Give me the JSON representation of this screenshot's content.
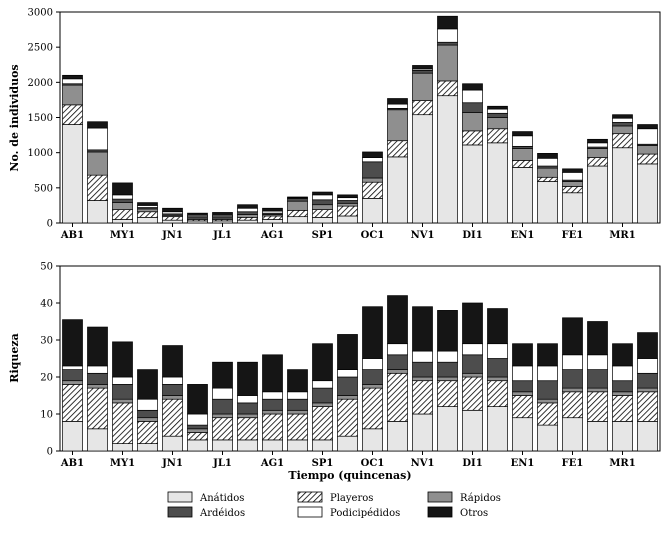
{
  "chart_data": [
    {
      "type": "bar",
      "stacked": true,
      "ylabel": "No. de individuos",
      "xlabel": "",
      "ylim": [
        0,
        3000
      ],
      "yticks": [
        0,
        500,
        1000,
        1500,
        2000,
        2500,
        3000
      ],
      "xtick_labels": [
        "AB1",
        "MY1",
        "JN1",
        "JL1",
        "AG1",
        "SP1",
        "OC1",
        "NV1",
        "DI1",
        "EN1",
        "FE1",
        "MR1"
      ],
      "n_bars": 24,
      "series": [
        {
          "name": "Anátidos",
          "values": [
            1400,
            320,
            50,
            80,
            40,
            30,
            30,
            40,
            50,
            90,
            80,
            100,
            350,
            940,
            1540,
            1810,
            1110,
            1140,
            790,
            590,
            430,
            810,
            1070,
            840
          ]
        },
        {
          "name": "Playeros",
          "values": [
            280,
            360,
            140,
            80,
            50,
            20,
            20,
            40,
            50,
            90,
            110,
            140,
            230,
            230,
            200,
            210,
            200,
            200,
            100,
            60,
            90,
            120,
            200,
            140
          ]
        },
        {
          "name": "Rápidos",
          "values": [
            280,
            330,
            100,
            40,
            20,
            20,
            20,
            40,
            20,
            130,
            70,
            40,
            60,
            440,
            390,
            510,
            260,
            160,
            170,
            130,
            70,
            130,
            110,
            120
          ]
        },
        {
          "name": "Ardéidos",
          "values": [
            20,
            30,
            50,
            20,
            20,
            20,
            20,
            40,
            20,
            40,
            70,
            40,
            230,
            20,
            40,
            40,
            140,
            60,
            30,
            30,
            20,
            20,
            50,
            20
          ]
        },
        {
          "name": "Podicipédidos",
          "values": [
            70,
            310,
            60,
            30,
            30,
            20,
            20,
            50,
            30,
            10,
            70,
            40,
            60,
            60,
            20,
            190,
            180,
            60,
            150,
            110,
            110,
            60,
            60,
            220
          ]
        },
        {
          "name": "Otros",
          "values": [
            50,
            90,
            170,
            40,
            50,
            30,
            40,
            50,
            40,
            10,
            40,
            40,
            80,
            80,
            50,
            180,
            90,
            40,
            60,
            70,
            50,
            50,
            50,
            60
          ]
        }
      ]
    },
    {
      "type": "bar",
      "stacked": true,
      "ylabel": "Riqueza",
      "xlabel": "Tiempo (quincenas)",
      "ylim": [
        0,
        50
      ],
      "yticks": [
        0,
        10,
        20,
        30,
        40,
        50
      ],
      "xtick_labels": [
        "AB1",
        "MY1",
        "JN1",
        "JL1",
        "AG1",
        "SP1",
        "OC1",
        "NV1",
        "DI1",
        "EN1",
        "FE1",
        "MR1"
      ],
      "n_bars": 24,
      "series": [
        {
          "name": "Anátidos",
          "values": [
            8,
            6,
            2,
            2,
            4,
            3,
            3,
            3,
            3,
            3,
            3,
            4,
            6,
            8,
            10,
            12,
            11,
            12,
            9,
            7,
            9,
            8,
            8,
            8
          ]
        },
        {
          "name": "Playeros",
          "values": [
            10,
            11,
            11,
            6,
            10,
            2,
            6,
            6,
            7,
            7,
            9,
            10,
            11,
            13,
            9,
            7,
            9,
            7,
            6,
            6,
            7,
            8,
            7,
            8
          ]
        },
        {
          "name": "Rápidos",
          "values": [
            1,
            1,
            1,
            1,
            1,
            1,
            1,
            1,
            1,
            1,
            1,
            1,
            1,
            1,
            1,
            1,
            1,
            1,
            1,
            1,
            1,
            1,
            1,
            1
          ]
        },
        {
          "name": "Ardéidos",
          "values": [
            3,
            3,
            4,
            2,
            3,
            1,
            4,
            3,
            3,
            3,
            4,
            5,
            4,
            4,
            4,
            4,
            5,
            5,
            3,
            5,
            5,
            5,
            3,
            4
          ]
        },
        {
          "name": "Podicipédidos",
          "values": [
            1,
            2,
            2,
            3,
            2,
            3,
            3,
            2,
            2,
            2,
            2,
            2,
            3,
            3,
            3,
            3,
            3,
            4,
            4,
            4,
            4,
            4,
            4,
            4
          ]
        },
        {
          "name": "Otros",
          "values": [
            12.5,
            10.5,
            9.5,
            8,
            8.5,
            8,
            7,
            9,
            10,
            6,
            10,
            9.5,
            14,
            13,
            12,
            11,
            11,
            9.5,
            6,
            6,
            10,
            9,
            6,
            7
          ]
        }
      ]
    }
  ],
  "legend": {
    "placement": "bottom",
    "items": [
      {
        "label": "Anátidos",
        "fill": "#e6e6e6",
        "pattern": "solid"
      },
      {
        "label": "Playeros",
        "fill": "#ffffff",
        "pattern": "hatch"
      },
      {
        "label": "Rápidos",
        "fill": "#8f8f8f",
        "pattern": "solid"
      },
      {
        "label": "Ardéidos",
        "fill": "#4d4d4d",
        "pattern": "solid"
      },
      {
        "label": "Podicipédidos",
        "fill": "#ffffff",
        "pattern": "solid"
      },
      {
        "label": "Otros",
        "fill": "#151515",
        "pattern": "solid"
      }
    ]
  },
  "colors": {
    "Anátidos": "#e6e6e6",
    "Playeros": "hatch",
    "Rápidos": "#8f8f8f",
    "Ardéidos": "#4d4d4d",
    "Podicipédidos": "#ffffff",
    "Otros": "#151515"
  }
}
